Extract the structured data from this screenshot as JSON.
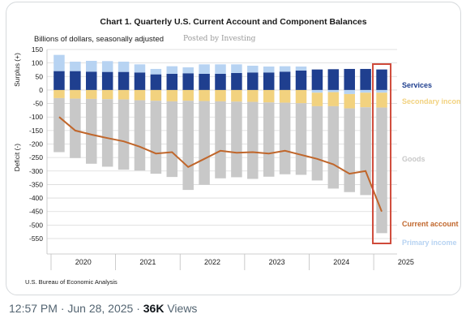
{
  "chart_data": {
    "type": "bar",
    "title": "Chart 1. Quarterly U.S. Current Account and Component Balances",
    "units_label": "Billions of dollars, seasonally adjusted",
    "watermark": "Posted by Investing",
    "source": "U.S. Bureau of Economic Analysis",
    "axis_side_labels": {
      "upper": "Surplus (+)",
      "lower": "Deficit (-)"
    },
    "ylim": [
      -550,
      150
    ],
    "yticks": [
      150,
      100,
      50,
      0,
      -50,
      -100,
      -150,
      -200,
      -250,
      -300,
      -350,
      -400,
      -450,
      -500,
      -550
    ],
    "years": [
      "2020",
      "2021",
      "2022",
      "2023",
      "2024",
      "2025"
    ],
    "quarters": [
      "2020Q1",
      "2020Q2",
      "2020Q3",
      "2020Q4",
      "2021Q1",
      "2021Q2",
      "2021Q3",
      "2021Q4",
      "2022Q1",
      "2022Q2",
      "2022Q3",
      "2022Q4",
      "2023Q1",
      "2023Q2",
      "2023Q3",
      "2023Q4",
      "2024Q1",
      "2024Q2",
      "2024Q3",
      "2024Q4",
      "2025Q1"
    ],
    "series": [
      {
        "name": "Services",
        "color": "#1f3f8f",
        "values": [
          70,
          70,
          68,
          67,
          67,
          65,
          58,
          60,
          62,
          60,
          60,
          63,
          65,
          65,
          68,
          72,
          76,
          77,
          78,
          78,
          76
        ]
      },
      {
        "name": "Primary income",
        "color": "#b7d3f2",
        "values": [
          60,
          35,
          40,
          40,
          38,
          30,
          20,
          28,
          22,
          35,
          35,
          32,
          25,
          22,
          20,
          15,
          -10,
          -8,
          -15,
          -10,
          -10
        ]
      },
      {
        "name": "Secondary income",
        "color": "#f2d27f",
        "values": [
          -30,
          -32,
          -33,
          -34,
          -35,
          -38,
          -40,
          -42,
          -40,
          -41,
          -42,
          -43,
          -44,
          -46,
          -47,
          -49,
          -50,
          -52,
          -53,
          -54,
          -55
        ]
      },
      {
        "name": "Goods",
        "color": "#c8c8c8",
        "values": [
          -200,
          -220,
          -240,
          -250,
          -260,
          -260,
          -270,
          -280,
          -330,
          -310,
          -285,
          -280,
          -285,
          -275,
          -265,
          -265,
          -275,
          -305,
          -310,
          -325,
          -465
        ]
      },
      {
        "name": "Current account",
        "color": "#c0662b",
        "type": "line",
        "values": [
          -100,
          -150,
          -165,
          -178,
          -190,
          -210,
          -235,
          -230,
          -285,
          -255,
          -225,
          -232,
          -230,
          -235,
          -225,
          -240,
          -255,
          -275,
          -310,
          -300,
          -450
        ]
      }
    ],
    "legend_order": [
      "Services",
      "Secondary income",
      "Goods",
      "Current account",
      "Primary income"
    ],
    "highlight": {
      "quarter": "2025Q1",
      "color": "#cf4a3a"
    },
    "grid": true
  },
  "tweet_footer": {
    "time": "12:57 PM · Jun 28, 2025 · ",
    "views_count": "36K",
    "views_label": " Views"
  }
}
